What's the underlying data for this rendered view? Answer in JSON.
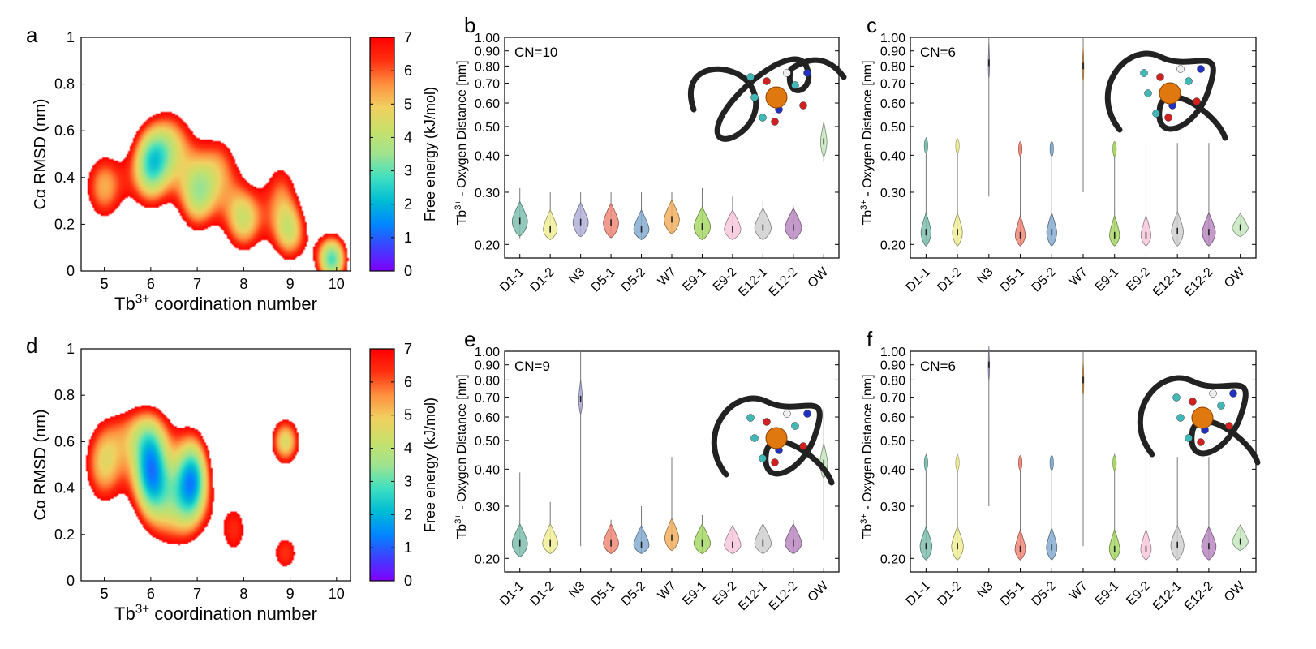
{
  "colors": {
    "colorbar": [
      "#7f00ff",
      "#3f3fff",
      "#0087ff",
      "#00bcd4",
      "#40e0c0",
      "#9fe38f",
      "#c8e06a",
      "#f0d060",
      "#ff9040",
      "#ff3010",
      "#ff0000"
    ],
    "violin": [
      "#7fbfb0",
      "#f0ee98",
      "#b3b0d8",
      "#f08878",
      "#86acd0",
      "#f2b060",
      "#a8d868",
      "#f8c8dc",
      "#d0d0d0",
      "#b888c0",
      "#c8e8c0"
    ]
  },
  "chart_data": [
    {
      "panel": "a",
      "type": "heatmap",
      "xlabel_main": "Tb",
      "xlabel_sup": "3+",
      "xlabel_rest": " coordination number",
      "ylabel": "Cα RMSD (nm)",
      "colorbar_label": "Free energy (kJ/mol)",
      "xlim": [
        4.5,
        10.3
      ],
      "ylim": [
        0,
        1
      ],
      "xticks": [
        "5",
        "6",
        "7",
        "8",
        "9",
        "10"
      ],
      "yticks": [
        "0",
        "0.2",
        "0.4",
        "0.6",
        "0.8",
        "1"
      ],
      "cbar_ticks": [
        "0",
        "1",
        "2",
        "3",
        "4",
        "5",
        "6",
        "7"
      ],
      "minima": [
        {
          "cn": 6.0,
          "rmsd": 0.45,
          "depth": 6.2,
          "sx": 0.32,
          "sy": 0.13
        },
        {
          "cn": 5.0,
          "rmsd": 0.36,
          "depth": 4.2,
          "sx": 0.35,
          "sy": 0.12
        },
        {
          "cn": 7.0,
          "rmsd": 0.32,
          "depth": 5.0,
          "sx": 0.32,
          "sy": 0.12
        },
        {
          "cn": 6.5,
          "rmsd": 0.55,
          "depth": 3.5,
          "sx": 0.35,
          "sy": 0.12
        },
        {
          "cn": 8.0,
          "rmsd": 0.22,
          "depth": 5.0,
          "sx": 0.32,
          "sy": 0.11
        },
        {
          "cn": 7.5,
          "rmsd": 0.45,
          "depth": 3.2,
          "sx": 0.35,
          "sy": 0.12
        },
        {
          "cn": 9.0,
          "rmsd": 0.16,
          "depth": 4.5,
          "sx": 0.3,
          "sy": 0.1
        },
        {
          "cn": 9.9,
          "rmsd": 0.05,
          "depth": 6.6,
          "sx": 0.25,
          "sy": 0.08
        },
        {
          "cn": 8.8,
          "rmsd": 0.35,
          "depth": 3.0,
          "sx": 0.3,
          "sy": 0.12
        }
      ]
    },
    {
      "panel": "b",
      "type": "violin",
      "annotation": "CN=10",
      "ylabel_main": "Tb",
      "ylabel_sup": "3+",
      "ylabel_rest": " - Oxygen Distance [nm]",
      "ylim": [
        0.18,
        1.0
      ],
      "yscale": "log",
      "yticks": [
        "0.20",
        "0.30",
        "0.40",
        "0.50",
        "0.60",
        "0.70",
        "0.80",
        "0.90",
        "1.00"
      ],
      "categories": [
        "D1-1",
        "D1-2",
        "N3",
        "D5-1",
        "D5-2",
        "W7",
        "E9-1",
        "E9-2",
        "E12-1",
        "E12-2",
        "OW"
      ],
      "series": [
        {
          "name": "D1-1",
          "center": 0.24,
          "min": 0.21,
          "max": 0.31,
          "width": 0.6
        },
        {
          "name": "D1-2",
          "center": 0.225,
          "min": 0.21,
          "max": 0.3,
          "width": 0.55
        },
        {
          "name": "N3",
          "center": 0.238,
          "min": 0.215,
          "max": 0.3,
          "width": 0.6
        },
        {
          "name": "D5-1",
          "center": 0.237,
          "min": 0.21,
          "max": 0.3,
          "width": 0.6
        },
        {
          "name": "D5-2",
          "center": 0.225,
          "min": 0.21,
          "max": 0.3,
          "width": 0.6
        },
        {
          "name": "W7",
          "center": 0.243,
          "min": 0.22,
          "max": 0.3,
          "width": 0.6
        },
        {
          "name": "E9-1",
          "center": 0.23,
          "min": 0.21,
          "max": 0.31,
          "width": 0.65
        },
        {
          "name": "E9-2",
          "center": 0.225,
          "min": 0.21,
          "max": 0.29,
          "width": 0.65
        },
        {
          "name": "E12-1",
          "center": 0.228,
          "min": 0.21,
          "max": 0.28,
          "width": 0.65
        },
        {
          "name": "E12-2",
          "center": 0.228,
          "min": 0.21,
          "max": 0.27,
          "width": 0.65
        },
        {
          "name": "OW",
          "center": 0.445,
          "min": 0.38,
          "max": 0.52,
          "width": 0.25
        }
      ]
    },
    {
      "panel": "c",
      "type": "violin",
      "annotation": "CN=6",
      "ylabel_main": "Tb",
      "ylabel_sup": "3+",
      "ylabel_rest": " - Oxygen Distance [nm]",
      "ylim": [
        0.18,
        1.0
      ],
      "yscale": "log",
      "yticks": [
        "0.20",
        "0.30",
        "0.40",
        "0.50",
        "0.60",
        "0.70",
        "0.80",
        "0.90",
        "1.00"
      ],
      "categories": [
        "D1-1",
        "D1-2",
        "N3",
        "D5-1",
        "D5-2",
        "W7",
        "E9-1",
        "E9-2",
        "E12-1",
        "E12-2",
        "OW"
      ],
      "series": [
        {
          "name": "D1-1",
          "center": 0.22,
          "min": 0.2,
          "max": 0.46,
          "width": 0.38,
          "upper": 0.43
        },
        {
          "name": "D1-2",
          "center": 0.22,
          "min": 0.2,
          "max": 0.45,
          "width": 0.38,
          "upper": 0.43
        },
        {
          "name": "N3",
          "center": 0.82,
          "min": 0.29,
          "max": 1.0,
          "width": 0.05
        },
        {
          "name": "D5-1",
          "center": 0.215,
          "min": 0.2,
          "max": 0.44,
          "width": 0.38,
          "upper": 0.42
        },
        {
          "name": "D5-2",
          "center": 0.22,
          "min": 0.2,
          "max": 0.44,
          "width": 0.38,
          "upper": 0.42
        },
        {
          "name": "W7",
          "center": 0.8,
          "min": 0.3,
          "max": 1.0,
          "width": 0.05
        },
        {
          "name": "E9-1",
          "center": 0.215,
          "min": 0.2,
          "max": 0.44,
          "width": 0.38,
          "upper": 0.42
        },
        {
          "name": "E9-2",
          "center": 0.215,
          "min": 0.2,
          "max": 0.44,
          "width": 0.38
        },
        {
          "name": "E12-1",
          "center": 0.222,
          "min": 0.2,
          "max": 0.44,
          "width": 0.45
        },
        {
          "name": "E12-2",
          "center": 0.22,
          "min": 0.2,
          "max": 0.44,
          "width": 0.5
        },
        {
          "name": "OW",
          "center": 0.228,
          "min": 0.215,
          "max": 0.245,
          "width": 0.6
        }
      ]
    },
    {
      "panel": "d",
      "type": "heatmap",
      "xlabel_main": "Tb",
      "xlabel_sup": "3+",
      "xlabel_rest": " coordination number",
      "ylabel": "Cα RMSD (nm)",
      "colorbar_label": "Free energy (kJ/mol)",
      "xlim": [
        4.5,
        10.3
      ],
      "ylim": [
        0,
        1
      ],
      "xticks": [
        "5",
        "6",
        "7",
        "8",
        "9",
        "10"
      ],
      "yticks": [
        "0",
        "0.2",
        "0.4",
        "0.6",
        "0.8",
        "1"
      ],
      "cbar_ticks": [
        "0",
        "1",
        "2",
        "3",
        "4",
        "5",
        "6",
        "7"
      ],
      "minima": [
        {
          "cn": 6.0,
          "rmsd": 0.47,
          "depth": 6.8,
          "sx": 0.3,
          "sy": 0.14
        },
        {
          "cn": 6.9,
          "rmsd": 0.45,
          "depth": 6.6,
          "sx": 0.28,
          "sy": 0.14
        },
        {
          "cn": 5.0,
          "rmsd": 0.5,
          "depth": 4.5,
          "sx": 0.35,
          "sy": 0.14
        },
        {
          "cn": 8.9,
          "rmsd": 0.6,
          "depth": 5.0,
          "sx": 0.25,
          "sy": 0.08
        },
        {
          "cn": 7.8,
          "rmsd": 0.22,
          "depth": 3.0,
          "sx": 0.3,
          "sy": 0.12
        },
        {
          "cn": 8.9,
          "rmsd": 0.12,
          "depth": 3.2,
          "sx": 0.28,
          "sy": 0.08
        },
        {
          "cn": 6.5,
          "rmsd": 0.3,
          "depth": 3.5,
          "sx": 0.45,
          "sy": 0.14
        },
        {
          "cn": 5.8,
          "rmsd": 0.65,
          "depth": 3.0,
          "sx": 0.5,
          "sy": 0.1
        }
      ]
    },
    {
      "panel": "e",
      "type": "violin",
      "annotation": "CN=9",
      "ylabel_main": "Tb",
      "ylabel_sup": "3+",
      "ylabel_rest": " - Oxygen Distance [nm]",
      "ylim": [
        0.18,
        1.0
      ],
      "yscale": "log",
      "yticks": [
        "0.20",
        "0.30",
        "0.40",
        "0.50",
        "0.60",
        "0.70",
        "0.80",
        "0.90",
        "1.00"
      ],
      "categories": [
        "D1-1",
        "D1-2",
        "N3",
        "D5-1",
        "D5-2",
        "W7",
        "E9-1",
        "E9-2",
        "E12-1",
        "E12-2",
        "OW"
      ],
      "series": [
        {
          "name": "D1-1",
          "center": 0.225,
          "min": 0.205,
          "max": 0.39,
          "width": 0.6
        },
        {
          "name": "D1-2",
          "center": 0.225,
          "min": 0.21,
          "max": 0.31,
          "width": 0.6
        },
        {
          "name": "N3",
          "center": 0.69,
          "min": 0.22,
          "max": 1.0,
          "width": 0.15
        },
        {
          "name": "D5-1",
          "center": 0.225,
          "min": 0.21,
          "max": 0.27,
          "width": 0.6
        },
        {
          "name": "D5-2",
          "center": 0.222,
          "min": 0.21,
          "max": 0.3,
          "width": 0.6
        },
        {
          "name": "W7",
          "center": 0.235,
          "min": 0.215,
          "max": 0.44,
          "width": 0.55
        },
        {
          "name": "E9-1",
          "center": 0.225,
          "min": 0.21,
          "max": 0.28,
          "width": 0.65
        },
        {
          "name": "E9-2",
          "center": 0.222,
          "min": 0.21,
          "max": 0.25,
          "width": 0.65
        },
        {
          "name": "E12-1",
          "center": 0.225,
          "min": 0.21,
          "max": 0.26,
          "width": 0.65
        },
        {
          "name": "E12-2",
          "center": 0.225,
          "min": 0.21,
          "max": 0.27,
          "width": 0.65
        },
        {
          "name": "OW",
          "center": 0.42,
          "min": 0.23,
          "max": 0.64,
          "width": 0.3
        }
      ]
    },
    {
      "panel": "f",
      "type": "violin",
      "annotation": "CN=6",
      "ylabel_main": "Tb",
      "ylabel_sup": "3+",
      "ylabel_rest": " - Oxygen Distance [nm]",
      "ylim": [
        0.18,
        1.0
      ],
      "yscale": "log",
      "yticks": [
        "0.20",
        "0.30",
        "0.40",
        "0.50",
        "0.60",
        "0.70",
        "0.80",
        "0.90",
        "1.00"
      ],
      "categories": [
        "D1-1",
        "D1-2",
        "N3",
        "D5-1",
        "D5-2",
        "W7",
        "E9-1",
        "E9-2",
        "E12-1",
        "E12-2",
        "OW"
      ],
      "series": [
        {
          "name": "D1-1",
          "center": 0.22,
          "min": 0.2,
          "max": 0.45,
          "width": 0.45,
          "upper": 0.42
        },
        {
          "name": "D1-2",
          "center": 0.22,
          "min": 0.2,
          "max": 0.45,
          "width": 0.45,
          "upper": 0.42
        },
        {
          "name": "N3",
          "center": 0.9,
          "min": 0.3,
          "max": 1.0,
          "width": 0.05
        },
        {
          "name": "D5-1",
          "center": 0.215,
          "min": 0.2,
          "max": 0.44,
          "width": 0.4,
          "upper": 0.42
        },
        {
          "name": "D5-2",
          "center": 0.218,
          "min": 0.2,
          "max": 0.44,
          "width": 0.4,
          "upper": 0.42
        },
        {
          "name": "W7",
          "center": 0.8,
          "min": 0.22,
          "max": 1.0,
          "width": 0.05
        },
        {
          "name": "E9-1",
          "center": 0.215,
          "min": 0.2,
          "max": 0.45,
          "width": 0.4,
          "upper": 0.42
        },
        {
          "name": "E9-2",
          "center": 0.215,
          "min": 0.2,
          "max": 0.44,
          "width": 0.4
        },
        {
          "name": "E12-1",
          "center": 0.222,
          "min": 0.2,
          "max": 0.44,
          "width": 0.5
        },
        {
          "name": "E12-2",
          "center": 0.22,
          "min": 0.2,
          "max": 0.44,
          "width": 0.55
        },
        {
          "name": "OW",
          "center": 0.228,
          "min": 0.215,
          "max": 0.25,
          "width": 0.6
        }
      ]
    }
  ]
}
